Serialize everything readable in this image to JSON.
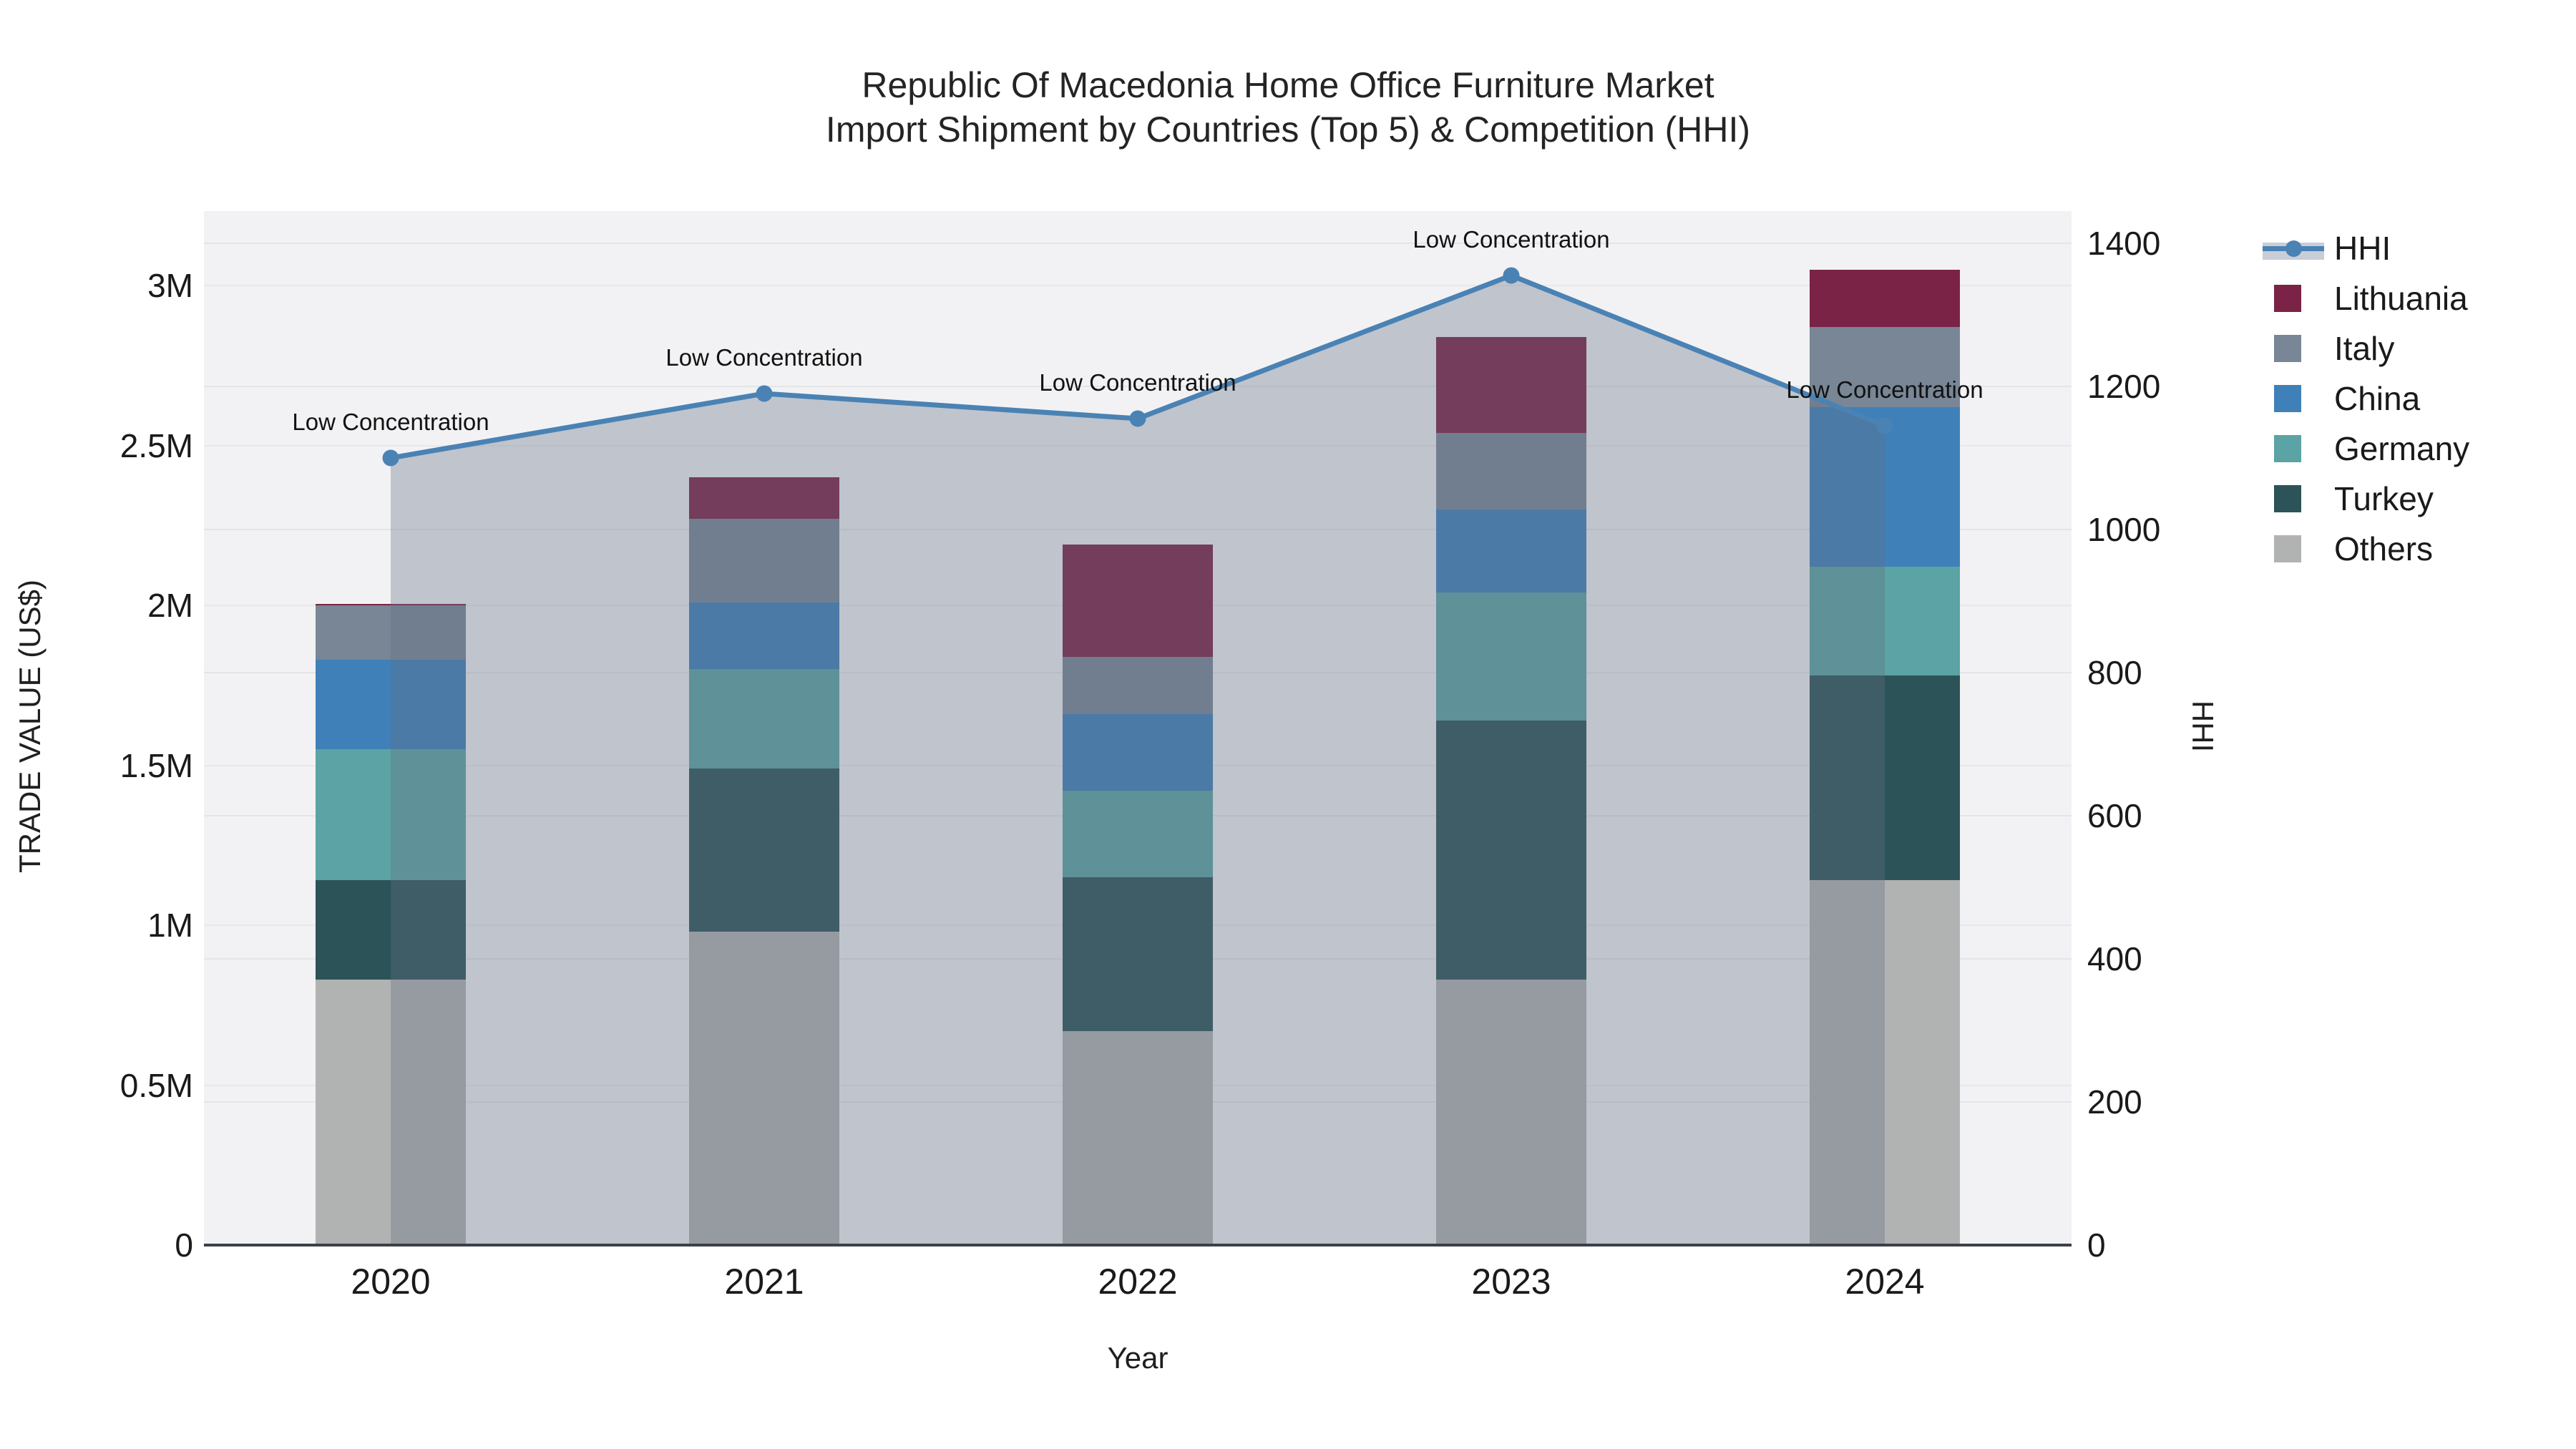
{
  "title": {
    "line1": "Republic Of Macedonia Home Office Furniture Market",
    "line2": "Import Shipment by Countries (Top 5) & Competition (HHI)"
  },
  "axes": {
    "x": {
      "title": "Year",
      "categories": [
        "2020",
        "2021",
        "2022",
        "2023",
        "2024"
      ]
    },
    "y_left": {
      "title": "TRADE VALUE (US$)",
      "tick_labels": [
        "0",
        "0.5M",
        "1M",
        "1.5M",
        "2M",
        "2.5M",
        "3M"
      ],
      "tick_values": [
        0,
        500000,
        1000000,
        1500000,
        2000000,
        2500000,
        3000000
      ],
      "max": 3233000
    },
    "y_right": {
      "title": "HHI",
      "tick_labels": [
        "0",
        "200",
        "400",
        "600",
        "800",
        "1000",
        "1200",
        "1400"
      ],
      "tick_values": [
        0,
        200,
        400,
        600,
        800,
        1000,
        1200,
        1400
      ],
      "max": 1445
    }
  },
  "annotations": {
    "hhi_point_label": "Low Concentration"
  },
  "legend": {
    "items": [
      {
        "label": "HHI",
        "type": "line",
        "color": "#4a82b4"
      },
      {
        "label": "Lithuania",
        "type": "square",
        "color": "#7b2346"
      },
      {
        "label": "Italy",
        "type": "square",
        "color": "#788696"
      },
      {
        "label": "China",
        "type": "square",
        "color": "#4080b8"
      },
      {
        "label": "Germany",
        "type": "square",
        "color": "#5ba3a4"
      },
      {
        "label": "Turkey",
        "type": "square",
        "color": "#2c5357"
      },
      {
        "label": "Others",
        "type": "square",
        "color": "#b1b2b2"
      }
    ]
  },
  "chart_data": {
    "type": "bar-stacked+line",
    "title": "Republic Of Macedonia Home Office Furniture Market Import Shipment by Countries (Top 5) & Competition (HHI)",
    "categories": [
      "2020",
      "2021",
      "2022",
      "2023",
      "2024"
    ],
    "xlabel": "Year",
    "ylabel_left": "TRADE VALUE (US$)",
    "ylabel_right": "HHI",
    "ylim_left": [
      0,
      3233000
    ],
    "ylim_right": [
      0,
      1445
    ],
    "grid": true,
    "legend_position": "right",
    "stack_order_bottom_to_top": [
      "Others",
      "Turkey",
      "Germany",
      "China",
      "Italy",
      "Lithuania"
    ],
    "bar_series": [
      {
        "name": "Lithuania",
        "color": "#7b2346",
        "values": [
          5000,
          130000,
          350000,
          300000,
          180000
        ]
      },
      {
        "name": "Italy",
        "color": "#788696",
        "values": [
          170000,
          260000,
          180000,
          240000,
          250000
        ]
      },
      {
        "name": "China",
        "color": "#4080b8",
        "values": [
          280000,
          210000,
          240000,
          260000,
          500000
        ]
      },
      {
        "name": "Germany",
        "color": "#5ba3a4",
        "values": [
          410000,
          310000,
          270000,
          400000,
          340000
        ]
      },
      {
        "name": "Turkey",
        "color": "#2c5357",
        "values": [
          310000,
          510000,
          480000,
          810000,
          640000
        ]
      },
      {
        "name": "Others",
        "color": "#b1b2b2",
        "values": [
          830000,
          980000,
          670000,
          830000,
          1140000
        ]
      }
    ],
    "bar_totals": [
      2005000,
      2400000,
      2190000,
      2840000,
      3050000
    ],
    "line_series": {
      "name": "HHI",
      "axis": "right",
      "color": "#4a82b4",
      "area_fill_color": "rgba(100,112,133,0.35)",
      "values": [
        1100,
        1190,
        1155,
        1355,
        1145
      ],
      "point_labels": [
        "Low Concentration",
        "Low Concentration",
        "Low Concentration",
        "Low Concentration",
        "Low Concentration"
      ]
    }
  },
  "colors": {
    "plot_bg": "#f2f2f4",
    "grid_left": "#e7e9ec",
    "grid_right": "#e3e5e9",
    "axis_line": "#3c4048",
    "text": "#1a1a1a",
    "accent_line": "#4a82b4"
  }
}
